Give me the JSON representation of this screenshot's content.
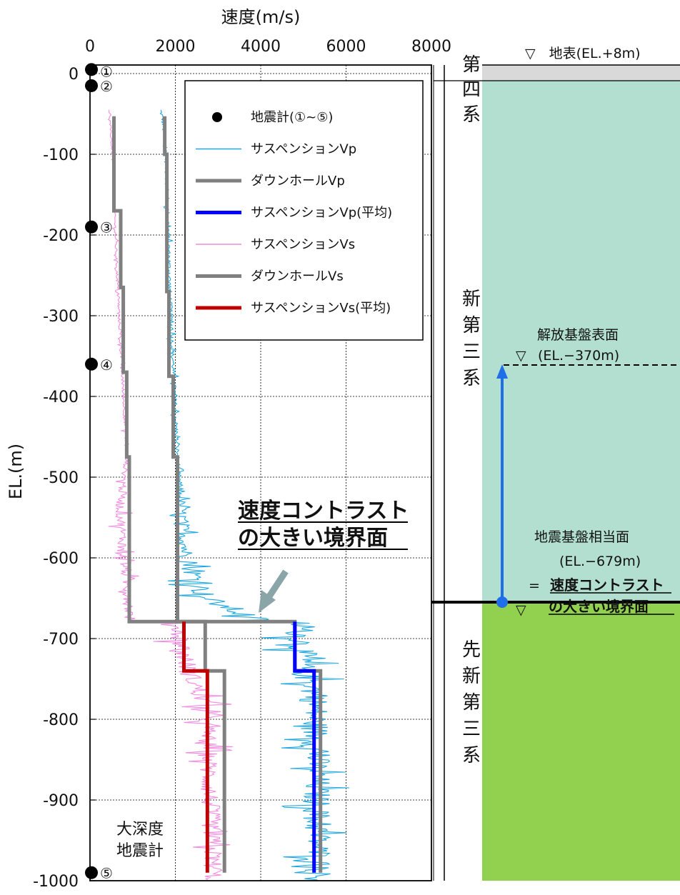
{
  "chart_data": {
    "type": "line",
    "xlabel": "速度(m/s)",
    "ylabel": "EL.(m)",
    "xlim": [
      0,
      8000
    ],
    "ylim": [
      -1000,
      8
    ],
    "x_ticks": [
      "0",
      "2000",
      "4000",
      "6000",
      "8000"
    ],
    "y_ticks": [
      "0",
      "-100",
      "-200",
      "-300",
      "-400",
      "-500",
      "-600",
      "-700",
      "-800",
      "-900",
      "-1000"
    ],
    "grid": true,
    "legend_position": "top-right",
    "legend": [
      {
        "label": "地震計(①~⑤)",
        "color": "#000000",
        "style": "marker"
      },
      {
        "label": "サスペンションVp",
        "color": "#1EA7E0",
        "style": "thin"
      },
      {
        "label": "ダウンホールVp",
        "color": "#808080",
        "style": "thick"
      },
      {
        "label": "サスペンションVp(平均)",
        "color": "#0000FF",
        "style": "thick"
      },
      {
        "label": "サスペンションVs",
        "color": "#F28CE0",
        "style": "thin"
      },
      {
        "label": "ダウンホールVs",
        "color": "#808080",
        "style": "thick"
      },
      {
        "label": "サスペンションVs(平均)",
        "color": "#C00000",
        "style": "thick"
      }
    ],
    "seismometers": [
      {
        "label": "①",
        "el": 5
      },
      {
        "label": "②",
        "el": -15
      },
      {
        "label": "③",
        "el": -190
      },
      {
        "label": "④",
        "el": -360
      },
      {
        "label": "⑤",
        "el": -990
      }
    ],
    "series": [
      {
        "name": "ダウンホールVp",
        "color": "#808080",
        "points": [
          [
            1700,
            -55
          ],
          [
            1750,
            -55
          ],
          [
            1750,
            -100
          ],
          [
            1800,
            -100
          ],
          [
            1800,
            -170
          ],
          [
            1800,
            -270
          ],
          [
            1850,
            -270
          ],
          [
            1850,
            -375
          ],
          [
            1950,
            -375
          ],
          [
            1950,
            -475
          ],
          [
            2050,
            -475
          ],
          [
            2050,
            -679
          ],
          [
            4800,
            -679
          ],
          [
            4800,
            -740
          ],
          [
            5400,
            -740
          ],
          [
            5400,
            -990
          ]
        ]
      },
      {
        "name": "ダウンホールVs",
        "color": "#808080",
        "points": [
          [
            520,
            -55
          ],
          [
            560,
            -55
          ],
          [
            560,
            -170
          ],
          [
            720,
            -170
          ],
          [
            720,
            -265
          ],
          [
            780,
            -265
          ],
          [
            780,
            -370
          ],
          [
            860,
            -370
          ],
          [
            860,
            -475
          ],
          [
            920,
            -475
          ],
          [
            920,
            -679
          ],
          [
            2700,
            -679
          ],
          [
            2700,
            -740
          ],
          [
            3150,
            -740
          ],
          [
            3150,
            -990
          ]
        ]
      },
      {
        "name": "サスペンションVp(平均)",
        "color": "#0000FF",
        "points": [
          [
            4800,
            -679
          ],
          [
            4800,
            -740
          ],
          [
            5250,
            -740
          ],
          [
            5250,
            -990
          ]
        ]
      },
      {
        "name": "サスペンションVs(平均)",
        "color": "#C00000",
        "points": [
          [
            2200,
            -679
          ],
          [
            2200,
            -740
          ],
          [
            2750,
            -740
          ],
          [
            2750,
            -990
          ]
        ]
      },
      {
        "name": "サスペンションVp",
        "color": "#1EA7E0",
        "profile": [
          [
            -45,
            1650
          ],
          [
            -55,
            1700
          ],
          [
            -100,
            1780
          ],
          [
            -170,
            1820
          ],
          [
            -270,
            1870
          ],
          [
            -375,
            1960
          ],
          [
            -475,
            2050
          ],
          [
            -540,
            2150
          ],
          [
            -600,
            2250
          ],
          [
            -650,
            2700
          ],
          [
            -679,
            4000
          ],
          [
            -680,
            4900
          ],
          [
            -740,
            5000
          ],
          [
            -760,
            5250
          ],
          [
            -1000,
            5350
          ]
        ],
        "noise": [
          [
            -45,
            60
          ],
          [
            -500,
            80
          ],
          [
            -540,
            200
          ],
          [
            -600,
            350
          ],
          [
            -679,
            600
          ],
          [
            -1000,
            550
          ]
        ]
      },
      {
        "name": "サスペンションVs",
        "color": "#F28CE0",
        "profile": [
          [
            -45,
            450
          ],
          [
            -100,
            520
          ],
          [
            -270,
            650
          ],
          [
            -375,
            760
          ],
          [
            -475,
            860
          ],
          [
            -540,
            700
          ],
          [
            -600,
            800
          ],
          [
            -679,
            950
          ],
          [
            -680,
            2000
          ],
          [
            -740,
            2300
          ],
          [
            -780,
            2700
          ],
          [
            -1000,
            2900
          ]
        ],
        "noise": [
          [
            -45,
            30
          ],
          [
            -475,
            60
          ],
          [
            -520,
            180
          ],
          [
            -679,
            220
          ],
          [
            -700,
            400
          ],
          [
            -1000,
            380
          ]
        ]
      }
    ],
    "velocity_contrast_el": -679
  },
  "annotations": {
    "contrast_title_line1": "速度コントラスト",
    "contrast_title_line2": "の大きい境界面",
    "deep_label_line1": "大深度",
    "deep_label_line2": "地震計"
  },
  "geology": {
    "ground_surface": "▽　地表(EL.+8m)",
    "units": [
      {
        "label": "第四系",
        "chars": [
          "第",
          "四",
          "系"
        ]
      },
      {
        "label": "新第三系",
        "chars": [
          "新",
          "第",
          "三",
          "系"
        ]
      },
      {
        "label": "先新第三系",
        "chars": [
          "先",
          "新",
          "第",
          "三",
          "系"
        ]
      }
    ],
    "base_surface_title": "解放基盤表面",
    "base_surface_mark": "▽",
    "base_surface_el": "(EL.−370m)",
    "seismic_base_title": "地震基盤相当面",
    "seismic_base_el": "(EL.−679m)",
    "seismic_base_eq": "=",
    "seismic_base_bold1": "速度コントラスト",
    "seismic_base_mark": "▽",
    "seismic_base_bold2": "の大きい境界面",
    "colors": {
      "surface": "#D9D9D9",
      "neogene": "#B2DFD0",
      "pre_neogene": "#92D050",
      "arrow": "#1F6FE8"
    }
  }
}
